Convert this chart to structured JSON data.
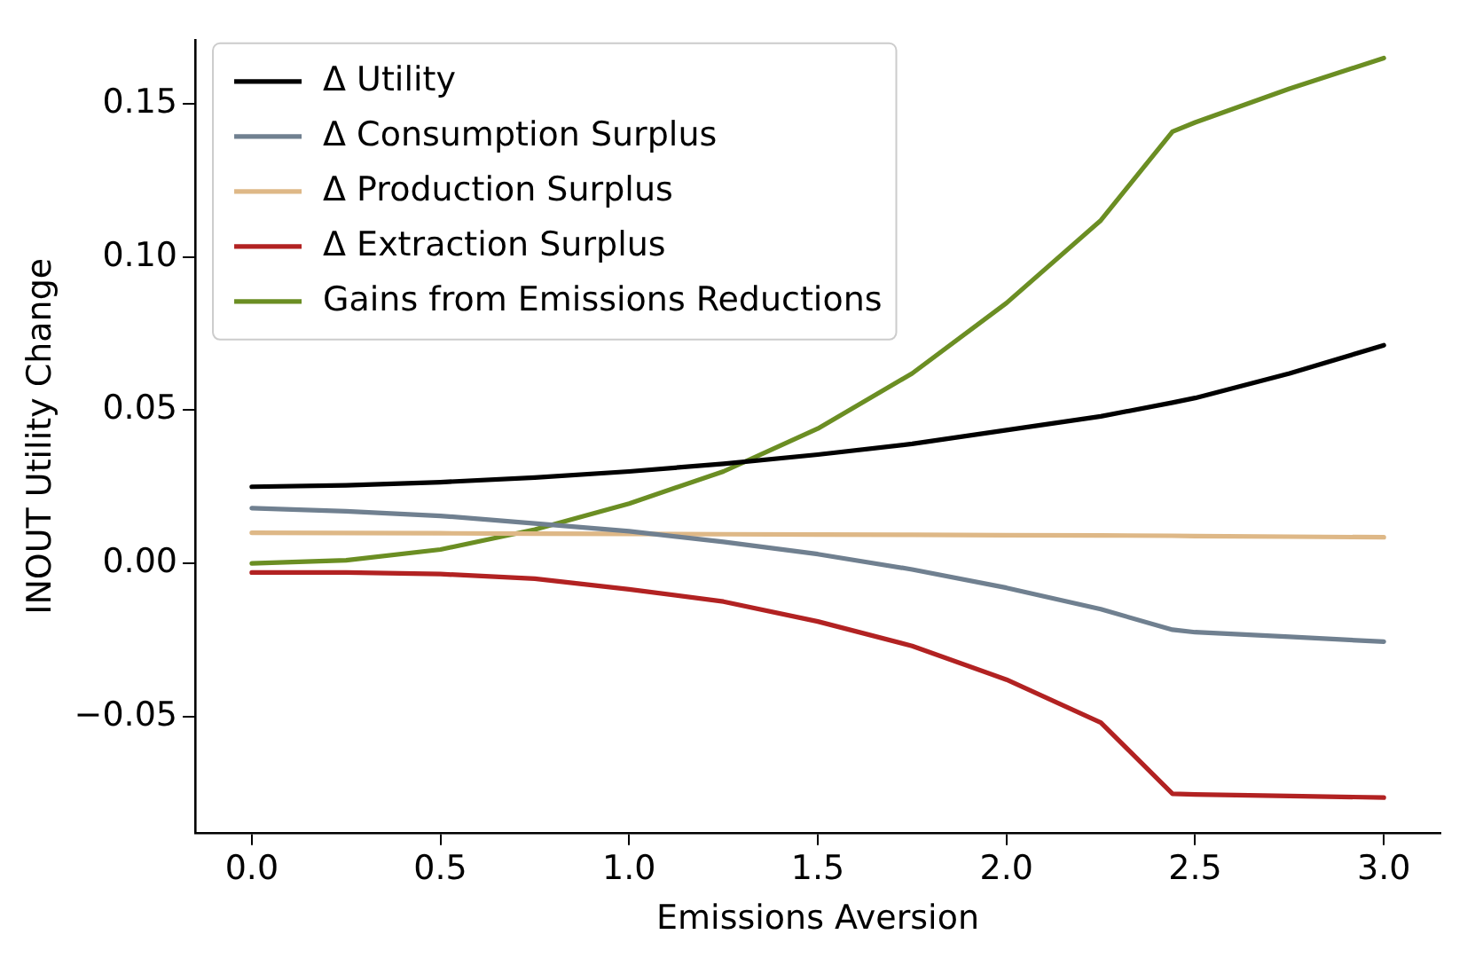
{
  "chart_data": {
    "type": "line",
    "xlabel": "Emissions Aversion",
    "ylabel": "INOUT Utility Change",
    "x": [
      0,
      0.25,
      0.5,
      0.75,
      1,
      1.25,
      1.5,
      1.75,
      2,
      2.25,
      2.44,
      2.5,
      2.75,
      3
    ],
    "series": [
      {
        "name": "Δ Utility",
        "color": "#000000",
        "values": [
          0.025,
          0.0255,
          0.0265,
          0.028,
          0.03,
          0.0325,
          0.0355,
          0.039,
          0.0435,
          0.048,
          0.0525,
          0.054,
          0.062,
          0.0712
        ]
      },
      {
        "name": "Δ Consumption Surplus",
        "color": "#708090",
        "values": [
          0.018,
          0.017,
          0.0155,
          0.013,
          0.0105,
          0.007,
          0.003,
          -0.002,
          -0.008,
          -0.015,
          -0.0217,
          -0.0225,
          -0.024,
          -0.0256
        ]
      },
      {
        "name": "Δ Production Surplus",
        "color": "#deb887",
        "values": [
          0.01,
          0.0099,
          0.0098,
          0.0097,
          0.0096,
          0.0095,
          0.0094,
          0.0093,
          0.0092,
          0.0091,
          0.009,
          0.0089,
          0.0087,
          0.0085
        ]
      },
      {
        "name": "Δ Extraction Surplus",
        "color": "#b22222",
        "values": [
          -0.003,
          -0.003,
          -0.0035,
          -0.005,
          -0.0085,
          -0.0125,
          -0.019,
          -0.027,
          -0.038,
          -0.052,
          -0.0753,
          -0.0755,
          -0.076,
          -0.0765
        ]
      },
      {
        "name": "Gains from Emissions Reductions",
        "color": "#6b8e23",
        "values": [
          0,
          0.001,
          0.0045,
          0.011,
          0.0195,
          0.03,
          0.044,
          0.062,
          0.085,
          0.112,
          0.141,
          0.144,
          0.155,
          0.165
        ]
      }
    ],
    "xlim": [
      -0.15,
      3.15
    ],
    "ylim": [
      -0.088,
      0.171
    ],
    "xticks": [
      {
        "value": 0,
        "label": "0.0"
      },
      {
        "value": 0.5,
        "label": "0.5"
      },
      {
        "value": 1,
        "label": "1.0"
      },
      {
        "value": 1.5,
        "label": "1.5"
      },
      {
        "value": 2,
        "label": "2.0"
      },
      {
        "value": 2.5,
        "label": "2.5"
      },
      {
        "value": 3,
        "label": "3.0"
      }
    ],
    "yticks": [
      {
        "value": -0.05,
        "label": "−0.05"
      },
      {
        "value": 0,
        "label": "0.00"
      },
      {
        "value": 0.05,
        "label": "0.05"
      },
      {
        "value": 0.1,
        "label": "0.10"
      },
      {
        "value": 0.15,
        "label": "0.15"
      }
    ],
    "legend": "top left",
    "grid": false,
    "marker": "none",
    "line_style": "solid"
  }
}
